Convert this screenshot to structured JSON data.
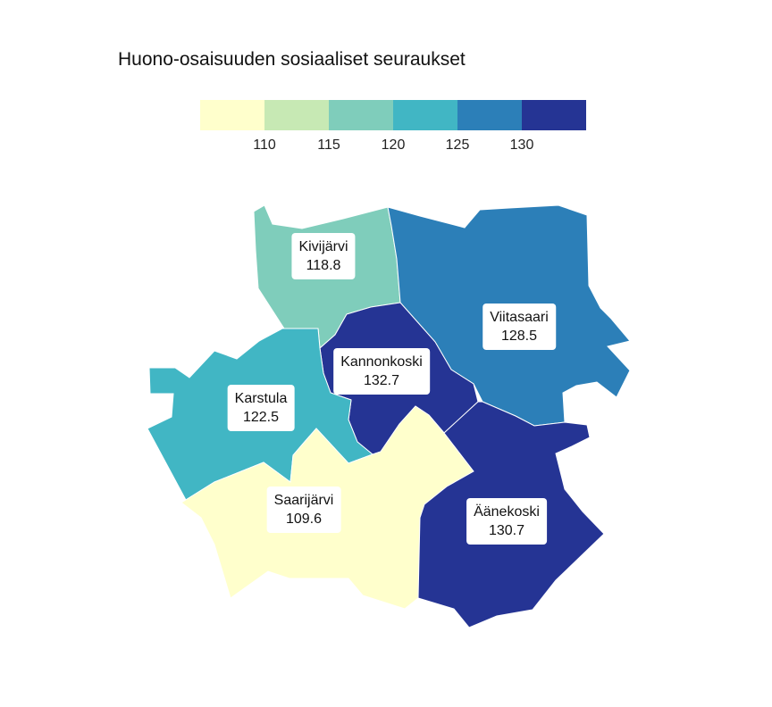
{
  "title": "Huono-osaisuuden sosiaaliset seuraukset",
  "legend": {
    "colors": [
      "#ffffcc",
      "#c7e9b4",
      "#7fcdbb",
      "#41b6c4",
      "#2c7fb8",
      "#253494"
    ],
    "ticks": [
      "110",
      "115",
      "120",
      "125",
      "130"
    ]
  },
  "regions": [
    {
      "name": "Kivijärvi",
      "value": "118.8",
      "color": "#7fcdbb"
    },
    {
      "name": "Viitasaari",
      "value": "128.5",
      "color": "#2c7fb8"
    },
    {
      "name": "Kannonkoski",
      "value": "132.7",
      "color": "#253494"
    },
    {
      "name": "Karstula",
      "value": "122.5",
      "color": "#41b6c4"
    },
    {
      "name": "Saarijärvi",
      "value": "109.6",
      "color": "#ffffcc"
    },
    {
      "name": "Äänekoski",
      "value": "130.7",
      "color": "#253494"
    }
  ]
}
